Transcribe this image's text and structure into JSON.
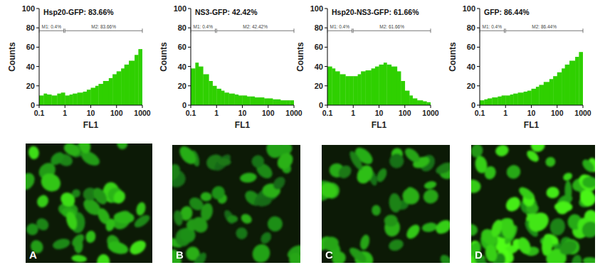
{
  "chart_data": [
    {
      "type": "histogram",
      "title": "Hsp20-GFP: 83.66%",
      "x_label": "FL1",
      "y_label": "Counts",
      "log": "x",
      "color": "#2fd000",
      "bins": [
        0.1,
        0.15,
        0.2,
        0.3,
        0.5,
        0.7,
        1,
        1.5,
        2,
        3,
        5,
        7,
        10,
        15,
        20,
        30,
        50,
        70,
        100,
        150,
        200,
        300,
        500,
        700,
        1000
      ],
      "values": [
        10,
        12,
        11,
        10,
        12,
        13,
        10,
        11,
        12,
        13,
        14,
        16,
        18,
        20,
        22,
        25,
        28,
        32,
        35,
        38,
        42,
        46,
        52,
        58
      ],
      "xlim": [
        0.1,
        1000
      ],
      "ylim": [
        0,
        100
      ],
      "xticks": [
        0.1,
        1,
        10,
        100,
        1000
      ],
      "yticks": [
        0,
        20,
        40,
        60,
        80,
        100
      ],
      "gate_level": 77,
      "gates": [
        {
          "label": "M1: 0.4%",
          "start": 0.1,
          "end": 0.9
        },
        {
          "label": "M2: 83.66%",
          "start": 1,
          "end": 1000
        }
      ]
    },
    {
      "type": "histogram",
      "title": "NS3-GFP: 42.42%",
      "x_label": "FL1",
      "y_label": "Counts",
      "log": "x",
      "color": "#2fd000",
      "bins": [
        0.1,
        0.15,
        0.2,
        0.3,
        0.5,
        0.7,
        1,
        1.5,
        2,
        3,
        5,
        7,
        10,
        15,
        20,
        30,
        50,
        70,
        100,
        150,
        200,
        300,
        500,
        700,
        1000
      ],
      "values": [
        38,
        44,
        40,
        32,
        25,
        20,
        17,
        15,
        13,
        12,
        11,
        10,
        10,
        9,
        9,
        8,
        8,
        7,
        7,
        6,
        6,
        5,
        5,
        5
      ],
      "xlim": [
        0.1,
        1000
      ],
      "ylim": [
        0,
        100
      ],
      "xticks": [
        0.1,
        1,
        10,
        100,
        1000
      ],
      "yticks": [
        0,
        20,
        40,
        60,
        80,
        100
      ],
      "gate_level": 77,
      "gates": [
        {
          "label": "M1: 0.4%",
          "start": 0.1,
          "end": 0.9
        },
        {
          "label": "M2: 42.42%",
          "start": 1,
          "end": 1000
        }
      ]
    },
    {
      "type": "histogram",
      "title": "Hsp20-NS3-GFP: 61.66%",
      "x_label": "FL1",
      "y_label": "Counts",
      "log": "x",
      "color": "#2fd000",
      "bins": [
        0.1,
        0.15,
        0.2,
        0.3,
        0.5,
        0.7,
        1,
        1.5,
        2,
        3,
        5,
        7,
        10,
        15,
        20,
        30,
        50,
        70,
        100,
        150,
        200,
        300,
        500,
        700,
        1000
      ],
      "values": [
        40,
        38,
        35,
        32,
        30,
        30,
        30,
        32,
        35,
        36,
        38,
        40,
        42,
        44,
        42,
        40,
        35,
        25,
        15,
        10,
        7,
        5,
        4,
        3
      ],
      "xlim": [
        0.1,
        1000
      ],
      "ylim": [
        0,
        100
      ],
      "xticks": [
        0.1,
        1,
        10,
        100,
        1000
      ],
      "yticks": [
        0,
        20,
        40,
        60,
        80,
        100
      ],
      "gate_level": 77,
      "gates": [
        {
          "label": "M1: 0.4%",
          "start": 0.1,
          "end": 0.9
        },
        {
          "label": "M2: 61.66%",
          "start": 1,
          "end": 1000
        }
      ]
    },
    {
      "type": "histogram",
      "title": "GFP: 86.44%",
      "x_label": "FL1",
      "y_label": "Counts",
      "log": "x",
      "color": "#2fd000",
      "bins": [
        0.1,
        0.15,
        0.2,
        0.3,
        0.5,
        0.7,
        1,
        1.5,
        2,
        3,
        5,
        7,
        10,
        15,
        20,
        30,
        50,
        70,
        100,
        150,
        200,
        300,
        500,
        700,
        1000
      ],
      "values": [
        5,
        6,
        7,
        8,
        9,
        10,
        10,
        11,
        12,
        13,
        14,
        15,
        17,
        19,
        21,
        24,
        27,
        30,
        34,
        38,
        42,
        46,
        50,
        55
      ],
      "xlim": [
        0.1,
        1000
      ],
      "ylim": [
        0,
        100
      ],
      "xticks": [
        0.1,
        1,
        10,
        100,
        1000
      ],
      "yticks": [
        0,
        20,
        40,
        60,
        80,
        100
      ],
      "gate_level": 77,
      "gates": [
        {
          "label": "M1: 0.4%",
          "start": 0.1,
          "end": 0.9
        },
        {
          "label": "M2: 86.44%",
          "start": 1,
          "end": 1000
        }
      ]
    }
  ],
  "images": [
    {
      "label": "A"
    },
    {
      "label": "B"
    },
    {
      "label": "C"
    },
    {
      "label": "D"
    }
  ]
}
